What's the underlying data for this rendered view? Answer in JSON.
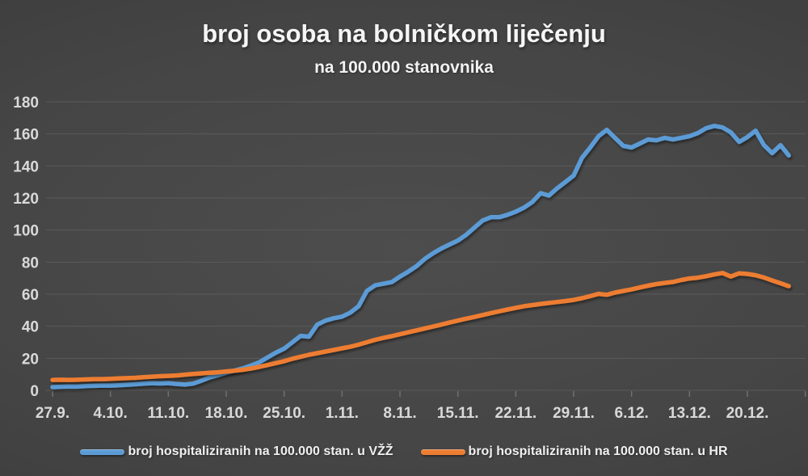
{
  "chart": {
    "title": "broj osoba na bolničkom liječenju",
    "subtitle": "na 100.000 stanovnika"
  },
  "colors": {
    "background": "#454545",
    "gridline": "#5a5a5a",
    "tick_mark": "#707070",
    "axis_text": "#d9d9d9",
    "title_text": "#f5f5f5"
  },
  "chart_data": {
    "type": "line",
    "title": "broj osoba na bolničkom liječenju",
    "subtitle": "na 100.000 stanovnika",
    "grid": "horizontal",
    "legend_position": "bottom",
    "ylim": [
      0,
      180
    ],
    "y_ticks": [
      0,
      20,
      40,
      60,
      80,
      100,
      120,
      140,
      160,
      180
    ],
    "x_tick_labels": [
      "27.9.",
      "4.10.",
      "11.10.",
      "18.10.",
      "25.10.",
      "1.11.",
      "8.11.",
      "15.11.",
      "22.11.",
      "29.11.",
      "6.12.",
      "13.12.",
      "20.12."
    ],
    "x_unit": "days, one point per day starting 27.9., weekly ticks",
    "series": [
      {
        "name": "broj hospitaliziranih na 100.000 stan. u VŽŽ",
        "color": "#5b9bd5",
        "values": [
          2,
          2.2,
          2.4,
          2.3,
          2.6,
          2.8,
          3,
          3,
          3.2,
          3.5,
          3.8,
          4.2,
          4.5,
          4.3,
          4.5,
          4,
          3.6,
          4.2,
          6,
          8,
          9.5,
          11,
          12.3,
          13.7,
          15.5,
          17.5,
          20.5,
          23.5,
          26,
          30,
          34,
          33.5,
          41,
          43.5,
          45,
          46,
          48.5,
          52.5,
          62,
          65.5,
          66.5,
          67.5,
          71,
          74,
          77.5,
          82,
          85.5,
          88.5,
          91,
          93.5,
          97,
          101.5,
          106,
          108,
          108,
          109.5,
          111.5,
          114,
          117.5,
          123,
          121.5,
          126,
          130,
          134,
          145,
          151.5,
          158.5,
          162.5,
          157.5,
          152.5,
          151.5,
          154,
          156.5,
          156,
          157.5,
          156.5,
          157.5,
          158.5,
          160.5,
          163.5,
          165,
          164,
          161,
          155,
          158,
          162,
          153,
          148,
          153,
          146.5
        ]
      },
      {
        "name": "broj hospitaliziranih na 100.000 stan. u HR",
        "color": "#ed7d31",
        "values": [
          6.5,
          6.6,
          6.5,
          6.6,
          6.8,
          7,
          7,
          7.2,
          7.4,
          7.6,
          7.8,
          8.2,
          8.5,
          8.8,
          9,
          9.3,
          9.8,
          10.2,
          10.6,
          11,
          11.3,
          11.8,
          12.2,
          12.8,
          13.6,
          14.6,
          15.8,
          17,
          18.2,
          19.7,
          21,
          22.2,
          23.2,
          24.2,
          25.2,
          26.2,
          27.2,
          28.5,
          30,
          31.5,
          32.7,
          33.8,
          35,
          36.2,
          37.4,
          38.6,
          39.8,
          41,
          42.3,
          43.5,
          44.7,
          45.8,
          47,
          48.2,
          49.3,
          50.4,
          51.5,
          52.5,
          53.2,
          53.9,
          54.5,
          55.1,
          55.7,
          56.4,
          57.5,
          58.8,
          60.2,
          59.6,
          61,
          62,
          63,
          64.2,
          65.3,
          66.3,
          67,
          67.6,
          68.8,
          69.8,
          70.3,
          71.2,
          72.3,
          73.2,
          71,
          73,
          72.6,
          71.8,
          70.4,
          68.5,
          66.8,
          65
        ]
      }
    ]
  }
}
